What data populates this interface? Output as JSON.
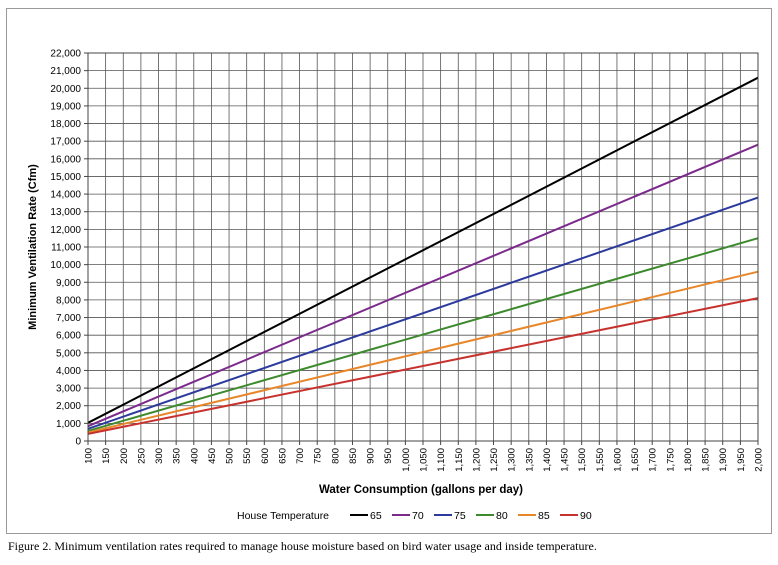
{
  "chart_data": {
    "type": "line",
    "xlabel": "Water Consumption (gallons per day)",
    "ylabel": "Minimum Ventilation Rate (Cfm)",
    "xlim": [
      100,
      2000
    ],
    "ylim": [
      0,
      22000
    ],
    "x_ticks": [
      100,
      150,
      200,
      250,
      300,
      350,
      400,
      450,
      500,
      550,
      600,
      650,
      700,
      750,
      800,
      850,
      900,
      950,
      1000,
      1050,
      1100,
      1150,
      1200,
      1250,
      1300,
      1350,
      1400,
      1450,
      1500,
      1550,
      1600,
      1650,
      1700,
      1750,
      1800,
      1850,
      1900,
      1950,
      2000
    ],
    "x_tick_labels": [
      "100",
      "150",
      "200",
      "250",
      "300",
      "350",
      "400",
      "450",
      "500",
      "550",
      "600",
      "650",
      "700",
      "750",
      "800",
      "850",
      "900",
      "950",
      "1,000",
      "1,050",
      "1,100",
      "1,150",
      "1,200",
      "1,250",
      "1,300",
      "1,350",
      "1,400",
      "1,450",
      "1,500",
      "1,550",
      "1,600",
      "1,650",
      "1,700",
      "1,750",
      "1,800",
      "1,850",
      "1,900",
      "1,950",
      "2,000"
    ],
    "y_ticks": [
      0,
      1000,
      2000,
      3000,
      4000,
      5000,
      6000,
      7000,
      8000,
      9000,
      10000,
      11000,
      12000,
      13000,
      14000,
      15000,
      16000,
      17000,
      18000,
      19000,
      20000,
      21000,
      22000
    ],
    "y_tick_labels": [
      "0",
      "1,000",
      "2,000",
      "3,000",
      "4,000",
      "5,000",
      "6,000",
      "7,000",
      "8,000",
      "9,000",
      "10,000",
      "11,000",
      "12,000",
      "13,000",
      "14,000",
      "15,000",
      "16,000",
      "17,000",
      "18,000",
      "19,000",
      "20,000",
      "21,000",
      "22,000"
    ],
    "grid": true,
    "legend_title": "House Temperature",
    "legend_position": "bottom",
    "series": [
      {
        "name": "65",
        "color": "#000000",
        "x": [
          100,
          2000
        ],
        "y": [
          1030,
          20600
        ]
      },
      {
        "name": "70",
        "color": "#7b2a8c",
        "x": [
          100,
          2000
        ],
        "y": [
          840,
          16800
        ]
      },
      {
        "name": "75",
        "color": "#2b3a9c",
        "x": [
          100,
          2000
        ],
        "y": [
          690,
          13800
        ]
      },
      {
        "name": "80",
        "color": "#3d8a2e",
        "x": [
          100,
          2000
        ],
        "y": [
          575,
          11500
        ]
      },
      {
        "name": "85",
        "color": "#e8862a",
        "x": [
          100,
          2000
        ],
        "y": [
          480,
          9600
        ]
      },
      {
        "name": "90",
        "color": "#c8322e",
        "x": [
          100,
          2000
        ],
        "y": [
          405,
          8100
        ]
      }
    ]
  },
  "caption": "Figure 2.  Minimum ventilation rates required to manage house moisture based on bird water usage and inside temperature."
}
